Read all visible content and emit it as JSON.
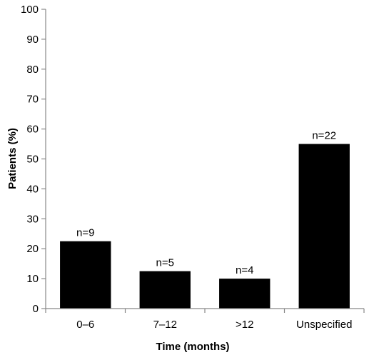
{
  "chart_data": {
    "type": "bar",
    "categories": [
      "0–6",
      "7–12",
      ">12",
      "Unspecified"
    ],
    "values": [
      22.5,
      12.5,
      10,
      55
    ],
    "data_labels": [
      "n=9",
      "n=5",
      "n=4",
      "n=22"
    ],
    "title": "",
    "xlabel": "Time (months)",
    "ylabel": "Patients (%)",
    "ylim": [
      0,
      100
    ],
    "yticks": [
      0,
      10,
      20,
      30,
      40,
      50,
      60,
      70,
      80,
      90,
      100
    ],
    "grid": false,
    "legend": "none",
    "bar_color": "#000000",
    "axis_color": "#888888"
  }
}
